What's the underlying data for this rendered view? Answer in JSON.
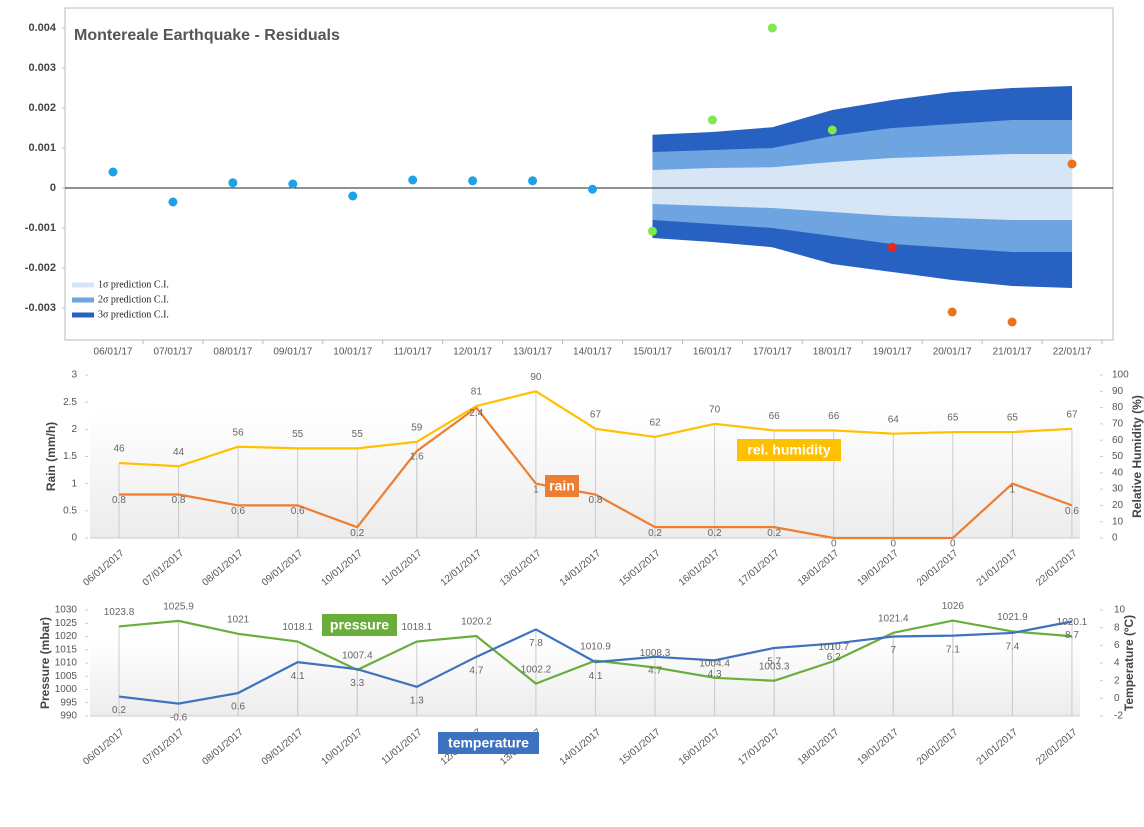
{
  "chart_data": [
    {
      "type": "scatter",
      "title": "Montereale Earthquake - Residuals",
      "categories": [
        "06/01/17",
        "07/01/17",
        "08/01/17",
        "09/01/17",
        "10/01/17",
        "11/01/17",
        "12/01/17",
        "13/01/17",
        "14/01/17",
        "15/01/17",
        "16/01/17",
        "17/01/17",
        "18/01/17",
        "19/01/17",
        "20/01/17",
        "21/01/17",
        "22/01/17"
      ],
      "values": [
        0.0004,
        -0.00035,
        0.00013,
        0.0001,
        -0.0002,
        0.0002,
        0.00018,
        0.00018,
        -3e-05,
        -0.00108,
        0.0017,
        0.004,
        0.00145,
        -0.00148,
        -0.0031,
        -0.00335,
        0.0006
      ],
      "point_colors": [
        "#1da1e8",
        "#1da1e8",
        "#1da1e8",
        "#1da1e8",
        "#1da1e8",
        "#1da1e8",
        "#1da1e8",
        "#1da1e8",
        "#1da1e8",
        "#7ee84c",
        "#7ee84c",
        "#7ee84c",
        "#7ee84c",
        "#e8281c",
        "#e8731c",
        "#e8731c",
        "#e8731c"
      ],
      "bands": [
        {
          "name": "1σ prediction C.I.",
          "color": "#d6e6f7",
          "upper": [
            null,
            null,
            null,
            null,
            null,
            null,
            null,
            null,
            null,
            0.00045,
            0.0005,
            0.00052,
            0.00065,
            0.00075,
            0.0008,
            0.00085,
            0.00085
          ],
          "lower": [
            null,
            null,
            null,
            null,
            null,
            null,
            null,
            null,
            null,
            -0.0004,
            -0.00045,
            -0.0005,
            -0.0006,
            -0.0007,
            -0.00075,
            -0.0008,
            -0.0008
          ]
        },
        {
          "name": "2σ prediction C.I.",
          "color": "#6ea4e0",
          "upper": [
            null,
            null,
            null,
            null,
            null,
            null,
            null,
            null,
            null,
            0.0009,
            0.00095,
            0.001,
            0.0013,
            0.0015,
            0.0016,
            0.0017,
            0.0017
          ],
          "lower": [
            null,
            null,
            null,
            null,
            null,
            null,
            null,
            null,
            null,
            -0.0008,
            -0.0009,
            -0.001,
            -0.0012,
            -0.0014,
            -0.0015,
            -0.0016,
            -0.0016
          ]
        },
        {
          "name": "3σ prediction C.I.",
          "color": "#2761c2",
          "upper": [
            null,
            null,
            null,
            null,
            null,
            null,
            null,
            null,
            null,
            0.00133,
            0.0014,
            0.00152,
            0.00195,
            0.0022,
            0.0024,
            0.0025,
            0.00255
          ],
          "lower": [
            null,
            null,
            null,
            null,
            null,
            null,
            null,
            null,
            null,
            -0.00125,
            -0.00135,
            -0.00148,
            -0.0019,
            -0.0021,
            -0.0023,
            -0.00245,
            -0.0025
          ]
        }
      ],
      "ylim": [
        -0.0038,
        0.0045
      ],
      "yticks": [
        -0.003,
        -0.002,
        -0.001,
        0,
        0.001,
        0.002,
        0.003,
        0.004
      ],
      "legend": "bottom-left"
    },
    {
      "type": "line",
      "categories": [
        "06/01/2017",
        "07/01/2017",
        "08/01/2017",
        "09/01/2017",
        "10/01/2017",
        "11/01/2017",
        "12/01/2017",
        "13/01/2017",
        "14/01/2017",
        "15/01/2017",
        "16/01/2017",
        "17/01/2017",
        "18/01/2017",
        "19/01/2017",
        "20/01/2017",
        "21/01/2017",
        "22/01/2017"
      ],
      "series": [
        {
          "name": "rain",
          "color": "#ed7d31",
          "values": [
            0.8,
            0.8,
            0.6,
            0.6,
            0.2,
            1.6,
            2.4,
            1,
            0.8,
            0.2,
            0.2,
            0.2,
            0,
            0,
            0,
            1,
            0.6
          ]
        },
        {
          "name": "rel. humidity",
          "color": "#ffc000",
          "axis": "y2",
          "values": [
            46,
            44,
            56,
            55,
            55,
            59,
            81,
            90,
            67,
            62,
            70,
            66,
            66,
            64,
            65,
            65,
            67
          ]
        }
      ],
      "ylabel": "Rain (mm/h)",
      "y2label": "Relative Humidity (%)",
      "ylim": [
        0,
        3
      ],
      "yticks": [
        0,
        0.5,
        1,
        1.5,
        2,
        2.5,
        3
      ],
      "y2lim": [
        0,
        100
      ],
      "y2ticks": [
        0,
        10,
        20,
        30,
        40,
        50,
        60,
        70,
        80,
        90,
        100
      ]
    },
    {
      "type": "line",
      "categories": [
        "06/01/2017",
        "07/01/2017",
        "08/01/2017",
        "09/01/2017",
        "10/01/2017",
        "11/01/2017",
        "12/01/2017",
        "13/01/2017",
        "14/01/2017",
        "15/01/2017",
        "16/01/2017",
        "17/01/2017",
        "18/01/2017",
        "19/01/2017",
        "20/01/2017",
        "21/01/2017",
        "22/01/2017"
      ],
      "series": [
        {
          "name": "pressure",
          "color": "#6aad3d",
          "values": [
            1023.8,
            1025.9,
            1021,
            1018.1,
            1007.4,
            1018.1,
            1020.2,
            1002.2,
            1010.9,
            1008.3,
            1004.4,
            1003.3,
            1010.7,
            1021.4,
            1026,
            1021.9,
            1020.1
          ]
        },
        {
          "name": "temperature",
          "color": "#3d72bf",
          "axis": "y2",
          "values": [
            0.2,
            -0.6,
            0.6,
            4.1,
            3.3,
            1.3,
            4.7,
            7.8,
            4.1,
            4.7,
            4.3,
            5.7,
            6.2,
            7,
            7.1,
            7.4,
            8.7
          ]
        }
      ],
      "ylabel": "Pressure (mbar)",
      "y2label": "Temperature (ºC)",
      "ylim": [
        990,
        1030
      ],
      "yticks": [
        990,
        995,
        1000,
        1005,
        1010,
        1015,
        1020,
        1025,
        1030
      ],
      "y2lim": [
        -2,
        10
      ],
      "y2ticks": [
        -2,
        0,
        2,
        4,
        6,
        8,
        10
      ]
    }
  ]
}
